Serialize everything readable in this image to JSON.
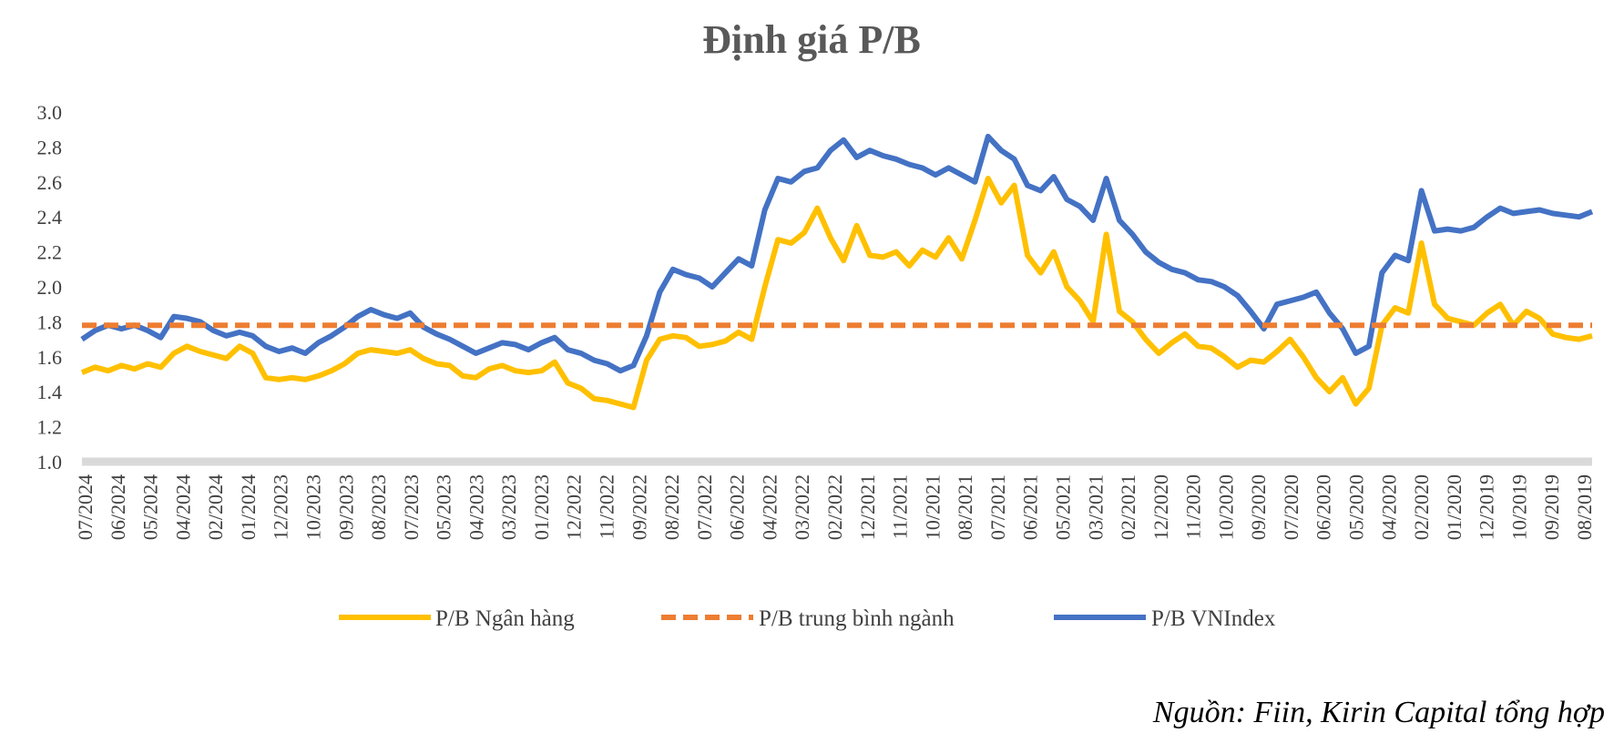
{
  "chart_data": {
    "type": "line",
    "title": "Định giá P/B",
    "source": "Nguồn: Fiin, Kirin Capital tổng hợp",
    "ylim": [
      1.0,
      3.0
    ],
    "yticks": [
      "3.0",
      "2.8",
      "2.6",
      "2.4",
      "2.2",
      "2.0",
      "1.8",
      "1.6",
      "1.4",
      "1.2",
      "1.0"
    ],
    "ytick_values": [
      3.0,
      2.8,
      2.6,
      2.4,
      2.2,
      2.0,
      1.8,
      1.6,
      1.4,
      1.2,
      1.0
    ],
    "grid": false,
    "legend_position": "bottom",
    "x_labels": [
      "07/2024",
      "06/2024",
      "05/2024",
      "04/2024",
      "02/2024",
      "01/2024",
      "12/2023",
      "10/2023",
      "09/2023",
      "08/2023",
      "07/2023",
      "05/2023",
      "04/2023",
      "03/2023",
      "01/2023",
      "12/2022",
      "11/2022",
      "09/2022",
      "08/2022",
      "07/2022",
      "06/2022",
      "04/2022",
      "03/2022",
      "02/2022",
      "12/2021",
      "11/2021",
      "10/2021",
      "08/2021",
      "07/2021",
      "06/2021",
      "05/2021",
      "03/2021",
      "02/2021",
      "12/2020",
      "11/2020",
      "10/2020",
      "09/2020",
      "07/2020",
      "06/2020",
      "05/2020",
      "04/2020",
      "02/2020",
      "01/2020",
      "12/2019",
      "10/2019",
      "09/2019",
      "08/2019"
    ],
    "series": [
      {
        "name": "P/B Ngân hàng",
        "color": "#FFC000",
        "style": "solid",
        "values": [
          1.51,
          1.54,
          1.52,
          1.55,
          1.53,
          1.56,
          1.54,
          1.62,
          1.66,
          1.63,
          1.61,
          1.59,
          1.66,
          1.62,
          1.48,
          1.47,
          1.48,
          1.47,
          1.49,
          1.52,
          1.56,
          1.62,
          1.64,
          1.63,
          1.62,
          1.64,
          1.59,
          1.56,
          1.55,
          1.49,
          1.48,
          1.53,
          1.55,
          1.52,
          1.51,
          1.52,
          1.57,
          1.45,
          1.42,
          1.36,
          1.35,
          1.33,
          1.31,
          1.58,
          1.7,
          1.72,
          1.71,
          1.66,
          1.67,
          1.69,
          1.74,
          1.7,
          2.0,
          2.27,
          2.25,
          2.31,
          2.45,
          2.28,
          2.15,
          2.35,
          2.18,
          2.17,
          2.2,
          2.12,
          2.21,
          2.17,
          2.28,
          2.16,
          2.38,
          2.62,
          2.48,
          2.58,
          2.18,
          2.08,
          2.2,
          2.0,
          1.92,
          1.8,
          2.3,
          1.86,
          1.8,
          1.7,
          1.62,
          1.68,
          1.73,
          1.66,
          1.65,
          1.6,
          1.54,
          1.58,
          1.57,
          1.63,
          1.7,
          1.6,
          1.48,
          1.4,
          1.48,
          1.33,
          1.42,
          1.78,
          1.88,
          1.85,
          2.25,
          1.9,
          1.82,
          1.8,
          1.78,
          1.85,
          1.9,
          1.78,
          1.86,
          1.82,
          1.73,
          1.71,
          1.7,
          1.72
        ]
      },
      {
        "name": "P/B trung bình ngành",
        "color": "#ED7D31",
        "style": "dashed",
        "values": [
          1.78,
          1.78
        ]
      },
      {
        "name": "P/B VNIndex",
        "color": "#4472C4",
        "style": "solid",
        "values": [
          1.7,
          1.75,
          1.78,
          1.76,
          1.78,
          1.75,
          1.71,
          1.83,
          1.82,
          1.8,
          1.75,
          1.72,
          1.74,
          1.72,
          1.66,
          1.63,
          1.65,
          1.62,
          1.68,
          1.72,
          1.77,
          1.83,
          1.87,
          1.84,
          1.82,
          1.85,
          1.77,
          1.73,
          1.7,
          1.66,
          1.62,
          1.65,
          1.68,
          1.67,
          1.64,
          1.68,
          1.71,
          1.64,
          1.62,
          1.58,
          1.56,
          1.52,
          1.55,
          1.72,
          1.97,
          2.1,
          2.07,
          2.05,
          2.0,
          2.08,
          2.16,
          2.12,
          2.44,
          2.62,
          2.6,
          2.66,
          2.68,
          2.78,
          2.84,
          2.74,
          2.78,
          2.75,
          2.73,
          2.7,
          2.68,
          2.64,
          2.68,
          2.64,
          2.6,
          2.86,
          2.78,
          2.73,
          2.58,
          2.55,
          2.63,
          2.5,
          2.46,
          2.38,
          2.62,
          2.38,
          2.3,
          2.2,
          2.14,
          2.1,
          2.08,
          2.04,
          2.03,
          2.0,
          1.95,
          1.86,
          1.76,
          1.9,
          1.92,
          1.94,
          1.97,
          1.85,
          1.76,
          1.62,
          1.66,
          2.08,
          2.18,
          2.15,
          2.55,
          2.32,
          2.33,
          2.32,
          2.34,
          2.4,
          2.45,
          2.42,
          2.43,
          2.44,
          2.42,
          2.41,
          2.4,
          2.43
        ]
      }
    ]
  }
}
